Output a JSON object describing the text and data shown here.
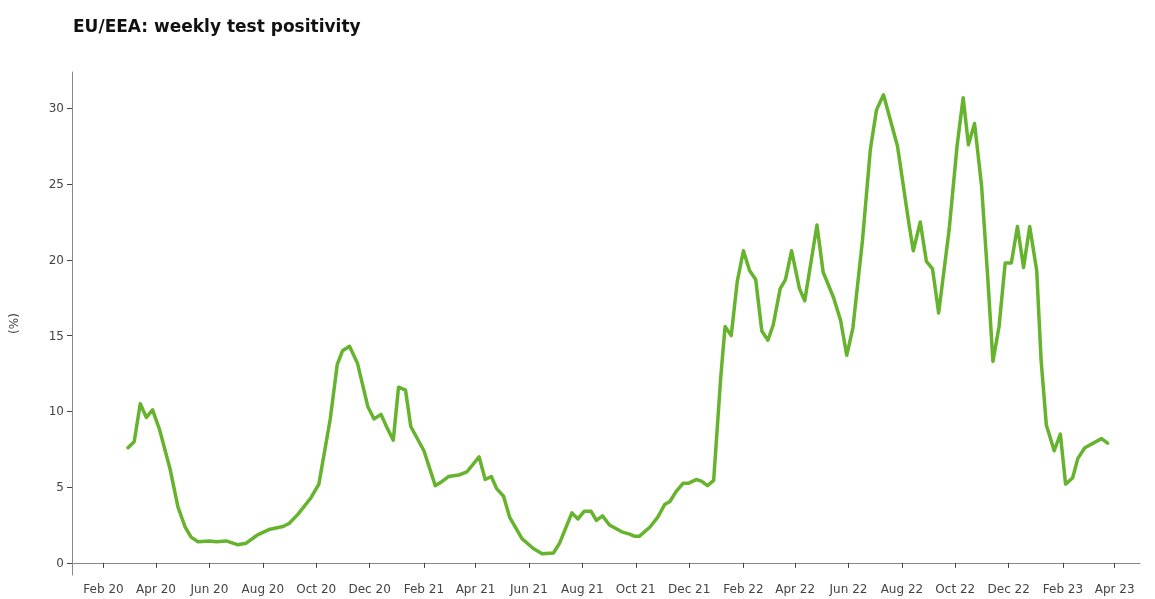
{
  "chart_data": {
    "type": "line",
    "title": "EU/EEA: weekly test positivity",
    "ylabel": "(%)",
    "x": [
      "2020-02-29",
      "2020-03-07",
      "2020-03-14",
      "2020-03-21",
      "2020-03-28",
      "2020-04-05",
      "2020-04-17",
      "2020-04-26",
      "2020-05-04",
      "2020-05-11",
      "2020-05-19",
      "2020-06-01",
      "2020-06-09",
      "2020-06-20",
      "2020-07-03",
      "2020-07-13",
      "2020-07-26",
      "2020-08-08",
      "2020-08-24",
      "2020-08-31",
      "2020-09-10",
      "2020-09-25",
      "2020-10-04",
      "2020-10-17",
      "2020-10-25",
      "2020-10-31",
      "2020-11-08",
      "2020-11-17",
      "2020-11-29",
      "2020-12-06",
      "2020-12-14",
      "2020-12-21",
      "2020-12-28",
      "2021-01-03",
      "2021-01-11",
      "2021-01-17",
      "2021-02-01",
      "2021-02-14",
      "2021-02-20",
      "2021-03-01",
      "2021-03-13",
      "2021-03-22",
      "2021-04-05",
      "2021-04-12",
      "2021-04-19",
      "2021-04-25",
      "2021-05-03",
      "2021-05-10",
      "2021-05-24",
      "2021-06-06",
      "2021-06-16",
      "2021-06-29",
      "2021-07-06",
      "2021-07-20",
      "2021-07-27",
      "2021-08-03",
      "2021-08-11",
      "2021-08-17",
      "2021-08-24",
      "2021-09-01",
      "2021-09-15",
      "2021-09-24",
      "2021-09-30",
      "2021-10-05",
      "2021-10-17",
      "2021-10-26",
      "2021-11-03",
      "2021-11-09",
      "2021-11-16",
      "2021-11-24",
      "2021-11-30",
      "2021-12-09",
      "2021-12-15",
      "2021-12-22",
      "2021-12-29",
      "2022-01-06",
      "2022-01-11",
      "2022-01-18",
      "2022-01-25",
      "2022-02-01",
      "2022-02-08",
      "2022-02-15",
      "2022-02-22",
      "2022-03-01",
      "2022-03-07",
      "2022-03-15",
      "2022-03-21",
      "2022-03-28",
      "2022-04-06",
      "2022-04-12",
      "2022-04-26",
      "2022-05-03",
      "2022-05-15",
      "2022-05-23",
      "2022-05-30",
      "2022-06-06",
      "2022-06-17",
      "2022-06-26",
      "2022-07-03",
      "2022-07-11",
      "2022-07-27",
      "2022-08-09",
      "2022-08-14",
      "2022-08-22",
      "2022-08-29",
      "2022-09-05",
      "2022-09-12",
      "2022-09-24",
      "2022-10-03",
      "2022-10-10",
      "2022-10-16",
      "2022-10-23",
      "2022-10-31",
      "2022-11-07",
      "2022-11-13",
      "2022-11-20",
      "2022-11-27",
      "2022-12-04",
      "2022-12-11",
      "2022-12-18",
      "2022-12-25",
      "2023-01-02",
      "2023-01-07",
      "2023-01-13",
      "2023-01-22",
      "2023-01-29",
      "2023-02-04",
      "2023-02-12",
      "2023-02-18",
      "2023-02-26",
      "2023-03-17",
      "2023-03-24"
    ],
    "series": [
      {
        "color": "#66b32e",
        "values": [
          7.6,
          8.0,
          10.5,
          9.6,
          10.1,
          8.8,
          6.2,
          3.7,
          2.4,
          1.7,
          1.4,
          1.45,
          1.4,
          1.45,
          1.2,
          1.3,
          1.85,
          2.2,
          2.4,
          2.6,
          3.2,
          4.3,
          5.2,
          9.5,
          13.1,
          14.0,
          14.3,
          13.2,
          10.3,
          9.5,
          9.8,
          8.9,
          8.1,
          11.6,
          11.4,
          9.0,
          7.4,
          5.1,
          5.3,
          5.7,
          5.8,
          6.0,
          7.0,
          5.5,
          5.7,
          4.9,
          4.4,
          3.0,
          1.6,
          0.95,
          0.6,
          0.65,
          1.3,
          3.3,
          2.9,
          3.4,
          3.4,
          2.8,
          3.1,
          2.5,
          2.05,
          1.9,
          1.75,
          1.75,
          2.35,
          3.0,
          3.85,
          4.05,
          4.7,
          5.25,
          5.25,
          5.5,
          5.4,
          5.1,
          5.45,
          12.2,
          15.6,
          15.0,
          18.6,
          20.6,
          19.3,
          18.7,
          15.3,
          14.7,
          15.7,
          18.1,
          18.7,
          20.6,
          18.1,
          17.3,
          22.3,
          19.2,
          17.5,
          16.0,
          13.7,
          15.5,
          21.3,
          27.3,
          29.9,
          30.9,
          27.5,
          22.4,
          20.6,
          22.5,
          19.9,
          19.4,
          16.5,
          22.0,
          27.5,
          30.7,
          27.6,
          29.0,
          24.9,
          18.9,
          13.3,
          15.6,
          19.8,
          19.8,
          22.2,
          19.5,
          22.2,
          19.3,
          13.4,
          9.1,
          7.4,
          8.5,
          5.2,
          5.6,
          6.9,
          7.6,
          8.2,
          7.9
        ]
      }
    ],
    "xlim": [
      "2019-12-27",
      "2023-04-30"
    ],
    "xticks": [
      {
        "value": "2020-02-01",
        "label": "Feb 20"
      },
      {
        "value": "2020-04-01",
        "label": "Apr 20"
      },
      {
        "value": "2020-06-01",
        "label": "Jun 20"
      },
      {
        "value": "2020-08-01",
        "label": "Aug 20"
      },
      {
        "value": "2020-10-01",
        "label": "Oct 20"
      },
      {
        "value": "2020-12-01",
        "label": "Dec 20"
      },
      {
        "value": "2021-02-01",
        "label": "Feb 21"
      },
      {
        "value": "2021-04-01",
        "label": "Apr 21"
      },
      {
        "value": "2021-06-01",
        "label": "Jun 21"
      },
      {
        "value": "2021-08-01",
        "label": "Aug 21"
      },
      {
        "value": "2021-10-01",
        "label": "Oct 21"
      },
      {
        "value": "2021-12-01",
        "label": "Dec 21"
      },
      {
        "value": "2022-02-01",
        "label": "Feb 22"
      },
      {
        "value": "2022-04-01",
        "label": "Apr 22"
      },
      {
        "value": "2022-06-01",
        "label": "Jun 22"
      },
      {
        "value": "2022-08-01",
        "label": "Aug 22"
      },
      {
        "value": "2022-10-01",
        "label": "Oct 22"
      },
      {
        "value": "2022-12-01",
        "label": "Dec 22"
      },
      {
        "value": "2023-02-01",
        "label": "Feb 23"
      },
      {
        "value": "2023-04-01",
        "label": "Apr 23"
      }
    ],
    "ylim": [
      -0.8,
      32.4
    ],
    "yticks": [
      0,
      5,
      10,
      15,
      20,
      25,
      30
    ],
    "grid": false,
    "marker": "none",
    "line_style": "solid"
  }
}
